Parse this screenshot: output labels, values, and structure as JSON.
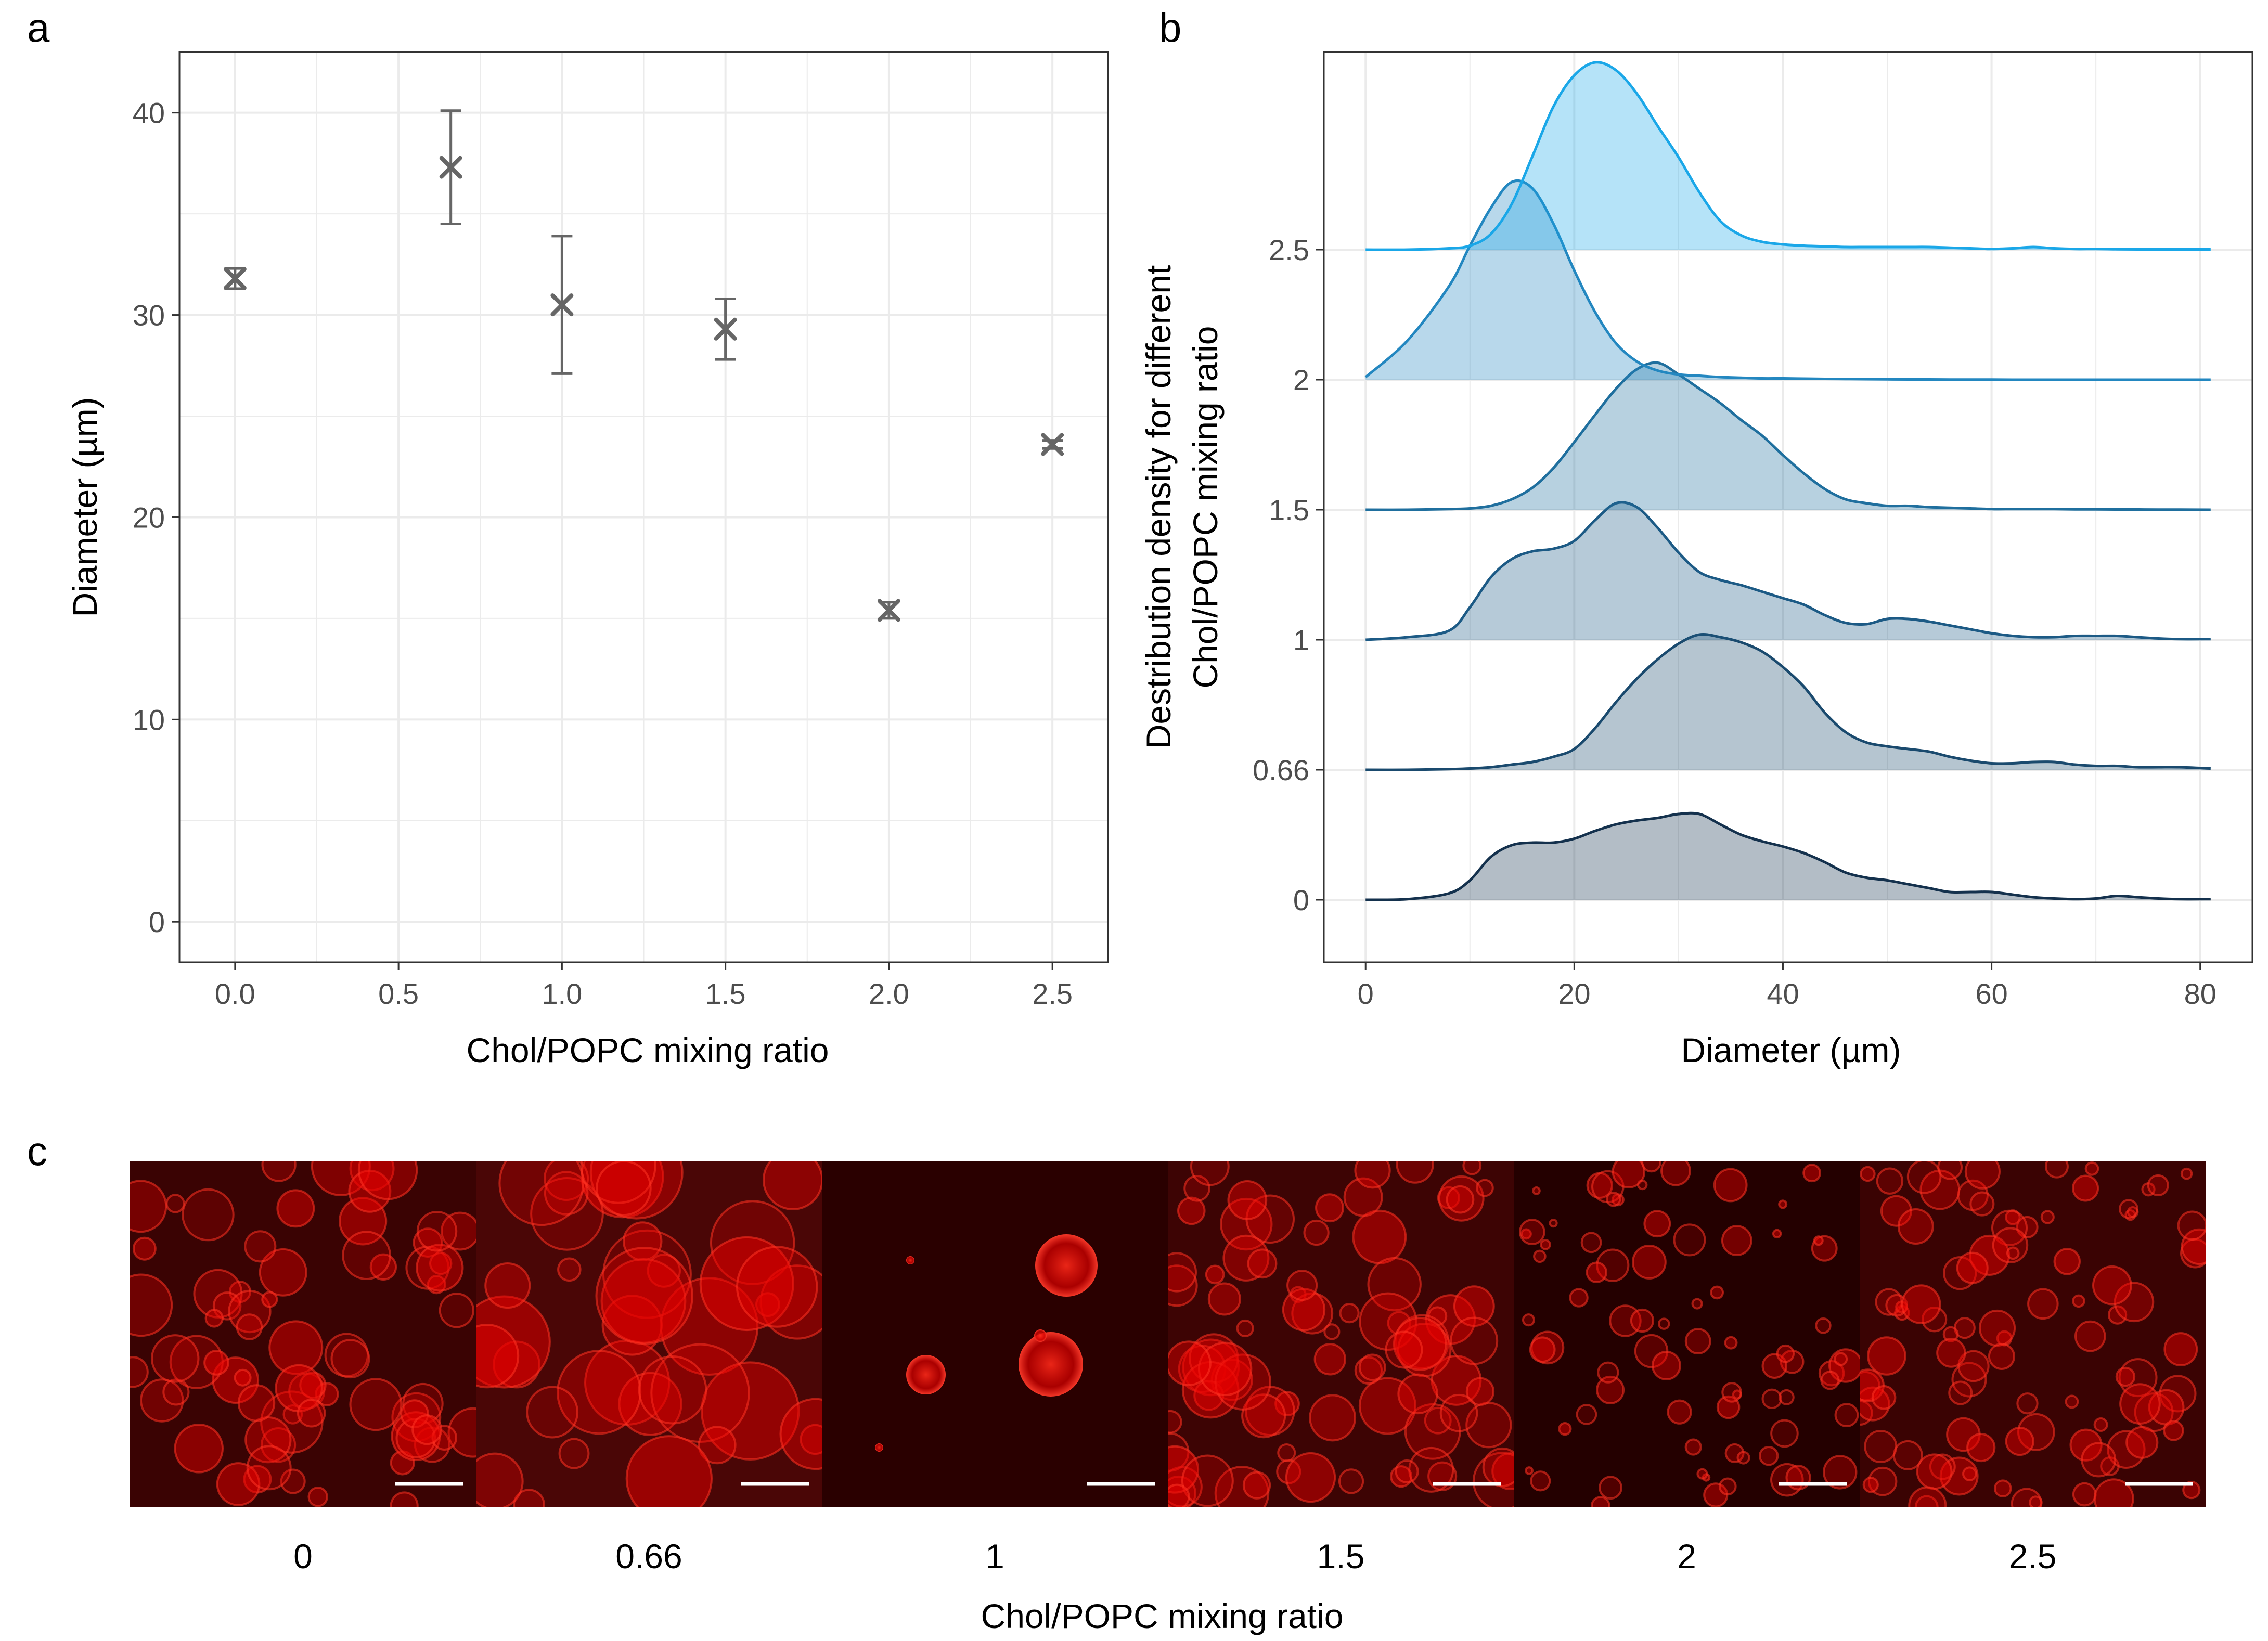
{
  "chart_data": [
    {
      "panel": "a",
      "type": "scatter",
      "xlabel": "Chol/POPC mixing ratio",
      "ylabel": "Diameter (µm)",
      "xlim": [
        -0.17,
        2.67
      ],
      "ylim": [
        -2,
        43
      ],
      "xticks": [
        "0.0",
        "0.5",
        "1.0",
        "1.5",
        "2.0",
        "2.5"
      ],
      "yticks": [
        "0",
        "10",
        "20",
        "30",
        "40"
      ],
      "grid": true,
      "marker": "x",
      "color": "#666666",
      "points": [
        {
          "x": 0.0,
          "y": 31.8,
          "ymin": 31.3,
          "ymax": 32.3
        },
        {
          "x": 0.66,
          "y": 37.3,
          "ymin": 34.5,
          "ymax": 40.1
        },
        {
          "x": 1.0,
          "y": 30.5,
          "ymin": 27.1,
          "ymax": 33.9
        },
        {
          "x": 1.5,
          "y": 29.3,
          "ymin": 27.8,
          "ymax": 30.8
        },
        {
          "x": 2.0,
          "y": 15.4,
          "ymin": 15.0,
          "ymax": 15.8
        },
        {
          "x": 2.5,
          "y": 23.6,
          "ymin": 23.4,
          "ymax": 23.8
        }
      ]
    },
    {
      "panel": "b",
      "type": "area",
      "subtype": "ridgeline",
      "xlabel": "Diameter (µm)",
      "ylabel_lines": [
        "Destribution density for different",
        "Chol/POPC mixing ratio"
      ],
      "xlim": [
        -4,
        85
      ],
      "xticks": [
        "0",
        "20",
        "40",
        "60",
        "80"
      ],
      "ytick_labels": [
        "0",
        "0.66",
        "1",
        "1.5",
        "2",
        "2.5"
      ],
      "grid": true,
      "x": [
        0,
        4,
        8,
        10,
        12,
        14,
        16,
        18,
        20,
        22,
        24,
        26,
        28,
        30,
        32,
        34,
        36,
        38,
        40,
        42,
        44,
        46,
        48,
        50,
        52,
        54,
        56,
        58,
        60,
        62,
        64,
        66,
        68,
        70,
        72,
        74,
        76,
        78,
        81
      ],
      "series": [
        {
          "name": "0",
          "baseline_row": 0,
          "color": "#14314d",
          "values": [
            0,
            0.005,
            0.05,
            0.15,
            0.33,
            0.42,
            0.44,
            0.44,
            0.47,
            0.53,
            0.58,
            0.61,
            0.63,
            0.66,
            0.66,
            0.58,
            0.5,
            0.45,
            0.41,
            0.36,
            0.29,
            0.21,
            0.17,
            0.15,
            0.12,
            0.09,
            0.06,
            0.06,
            0.06,
            0.04,
            0.02,
            0.01,
            0.005,
            0.01,
            0.03,
            0.02,
            0.01,
            0.005,
            0.005
          ]
        },
        {
          "name": "0.66",
          "baseline_row": 1,
          "color": "#1a4a6e",
          "values": [
            0,
            0,
            0.005,
            0.01,
            0.02,
            0.04,
            0.06,
            0.1,
            0.16,
            0.32,
            0.52,
            0.7,
            0.85,
            0.97,
            1.04,
            1.02,
            0.98,
            0.91,
            0.79,
            0.64,
            0.44,
            0.29,
            0.21,
            0.18,
            0.16,
            0.14,
            0.1,
            0.07,
            0.05,
            0.05,
            0.06,
            0.06,
            0.04,
            0.03,
            0.03,
            0.02,
            0.02,
            0.02,
            0.01
          ]
        },
        {
          "name": "1",
          "baseline_row": 2,
          "color": "#1c5a85",
          "values": [
            0,
            0.02,
            0.07,
            0.25,
            0.48,
            0.62,
            0.68,
            0.7,
            0.76,
            0.92,
            1.05,
            1.02,
            0.86,
            0.67,
            0.52,
            0.46,
            0.42,
            0.37,
            0.32,
            0.27,
            0.19,
            0.13,
            0.12,
            0.16,
            0.16,
            0.14,
            0.11,
            0.08,
            0.05,
            0.03,
            0.02,
            0.02,
            0.03,
            0.03,
            0.03,
            0.02,
            0.01,
            0.005,
            0.005
          ]
        },
        {
          "name": "1.5",
          "baseline_row": 3,
          "color": "#1f6f9e",
          "values": [
            0,
            0,
            0.005,
            0.01,
            0.03,
            0.08,
            0.17,
            0.32,
            0.52,
            0.73,
            0.93,
            1.08,
            1.13,
            1.04,
            0.93,
            0.82,
            0.69,
            0.57,
            0.42,
            0.28,
            0.16,
            0.08,
            0.05,
            0.03,
            0.03,
            0.02,
            0.015,
            0.01,
            0.005,
            0.005,
            0.005,
            0.005,
            0.003,
            0.003,
            0.002,
            0.002,
            0.001,
            0.001,
            0
          ]
        },
        {
          "name": "2",
          "baseline_row": 4,
          "color": "#2387c0",
          "values": [
            0.02,
            0.3,
            0.72,
            1.03,
            1.32,
            1.52,
            1.47,
            1.2,
            0.84,
            0.52,
            0.28,
            0.14,
            0.07,
            0.04,
            0.03,
            0.02,
            0.015,
            0.01,
            0.01,
            0.008,
            0.006,
            0.005,
            0.004,
            0.003,
            0.002,
            0.002,
            0.001,
            0.001,
            0.001,
            0,
            0,
            0,
            0,
            0,
            0,
            0,
            0,
            0,
            0
          ]
        },
        {
          "name": "2.5",
          "baseline_row": 5,
          "color": "#1aa7e8",
          "values": [
            0,
            0,
            0.01,
            0.03,
            0.12,
            0.35,
            0.72,
            1.1,
            1.34,
            1.44,
            1.38,
            1.2,
            0.95,
            0.71,
            0.44,
            0.22,
            0.11,
            0.06,
            0.04,
            0.03,
            0.025,
            0.02,
            0.02,
            0.02,
            0.02,
            0.02,
            0.015,
            0.01,
            0.005,
            0.01,
            0.02,
            0.01,
            0.005,
            0.005,
            0.003,
            0.002,
            0.002,
            0.002,
            0.002
          ]
        }
      ]
    },
    {
      "panel": "c",
      "type": "image-strip",
      "xlabel": "Chol/POPC mixing ratio",
      "labels": [
        "0",
        "0.66",
        "1",
        "1.5",
        "2",
        "2.5"
      ]
    }
  ],
  "panels": {
    "a": {
      "letter": "a"
    },
    "b": {
      "letter": "b"
    },
    "c": {
      "letter": "c"
    }
  },
  "colors": {
    "panel_a_marker": "#666666",
    "grid": "#ebebeb",
    "axis_text": "#4d4d4d",
    "micrograph_dark": "#2a0000",
    "micrograph_red": "#e60000"
  }
}
